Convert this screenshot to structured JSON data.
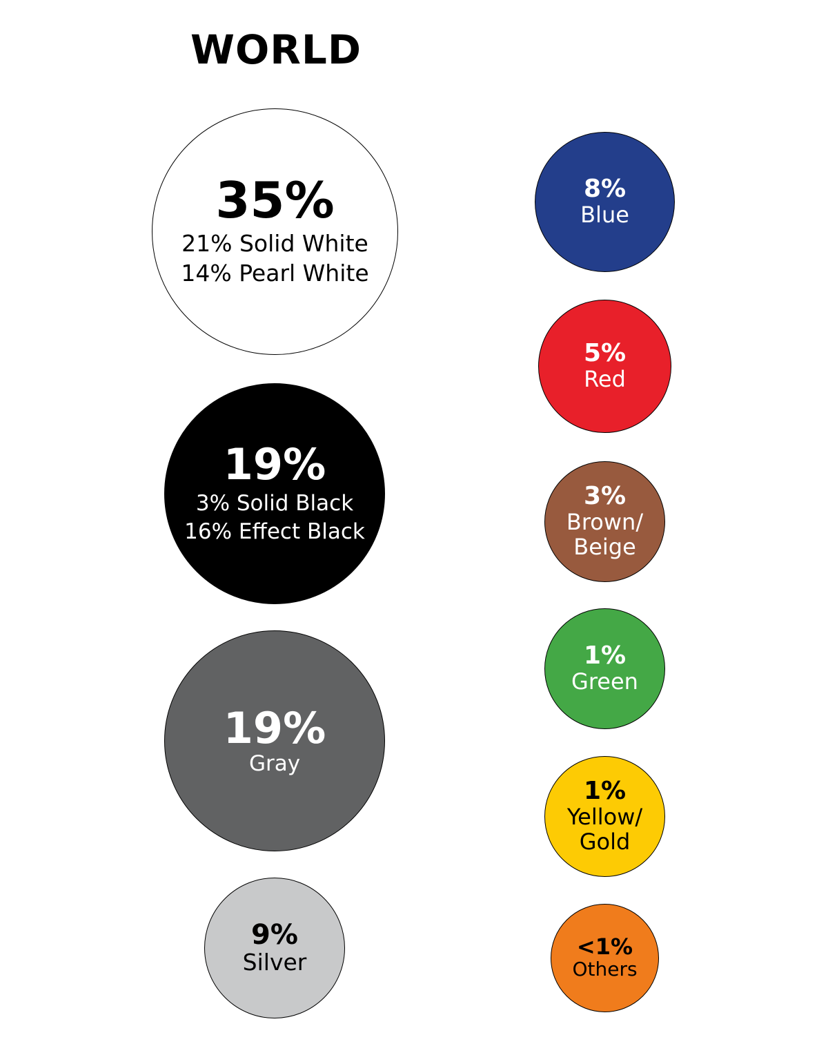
{
  "title": "WORLD",
  "chart_data": {
    "type": "bubble",
    "title": "WORLD",
    "unit": "%",
    "items": [
      {
        "name": "White",
        "value_label": "35%",
        "value": 35,
        "color": "#ffffff",
        "text_color": "#000000",
        "breakdown": [
          {
            "label": "21% Solid White",
            "value": 21
          },
          {
            "label": "14% Pearl White",
            "value": 14
          }
        ]
      },
      {
        "name": "Black",
        "value_label": "19%",
        "value": 19,
        "color": "#000000",
        "text_color": "#ffffff",
        "breakdown": [
          {
            "label": "3% Solid Black",
            "value": 3
          },
          {
            "label": "16% Effect Black",
            "value": 16
          }
        ]
      },
      {
        "name": "Gray",
        "value_label": "19%",
        "value": 19,
        "color": "#616263",
        "text_color": "#ffffff",
        "label": "Gray"
      },
      {
        "name": "Silver",
        "value_label": "9%",
        "value": 9,
        "color": "#c8c9ca",
        "text_color": "#000000",
        "label": "Silver"
      },
      {
        "name": "Blue",
        "value_label": "8%",
        "value": 8,
        "color": "#233e8b",
        "text_color": "#ffffff",
        "label": "Blue"
      },
      {
        "name": "Red",
        "value_label": "5%",
        "value": 5,
        "color": "#e8202a",
        "text_color": "#ffffff",
        "label": "Red"
      },
      {
        "name": "Brown/Beige",
        "value_label": "3%",
        "value": 3,
        "color": "#985a3e",
        "text_color": "#ffffff",
        "label": "Brown/\nBeige"
      },
      {
        "name": "Green",
        "value_label": "1%",
        "value": 1,
        "color": "#44a846",
        "text_color": "#ffffff",
        "label": "Green"
      },
      {
        "name": "Yellow/Gold",
        "value_label": "1%",
        "value": 1,
        "color": "#fdcb04",
        "text_color": "#000000",
        "label": "Yellow/\nGold"
      },
      {
        "name": "Others",
        "value_label": "<1%",
        "value": 0.5,
        "color": "#f07c1c",
        "text_color": "#000000",
        "label": "Others"
      }
    ]
  }
}
